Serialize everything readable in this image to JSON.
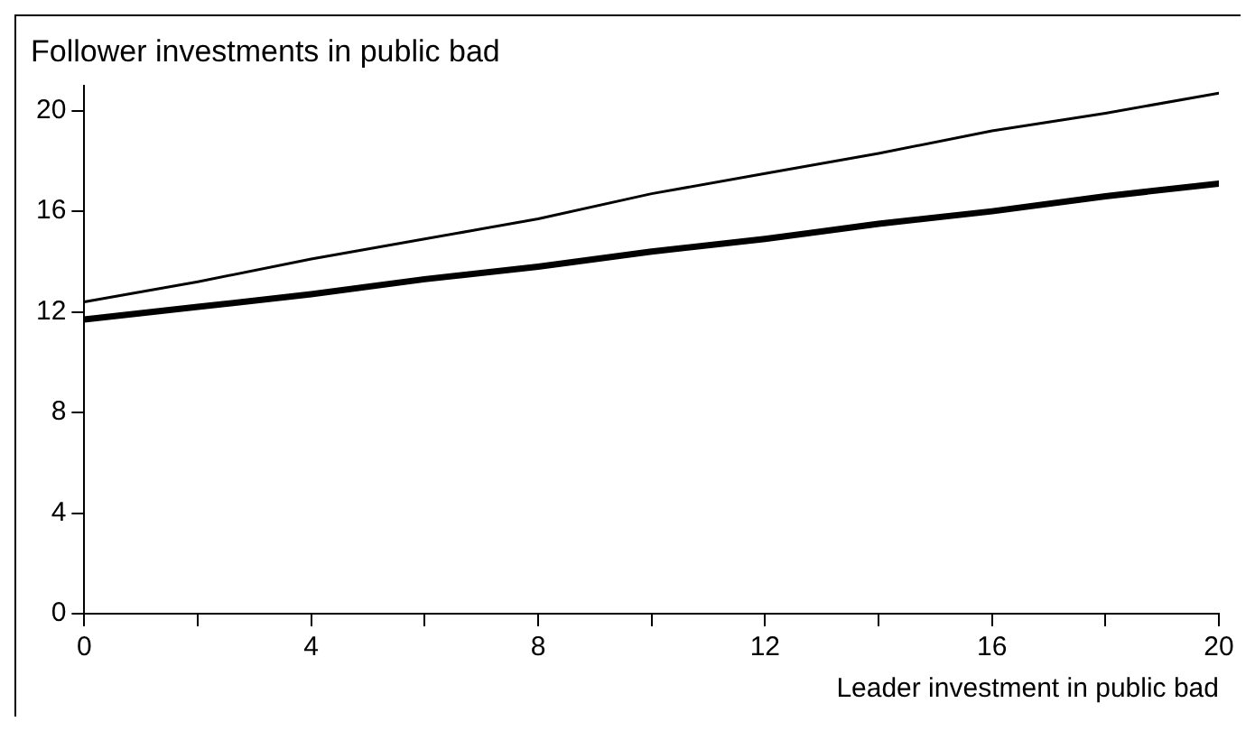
{
  "chart_data": {
    "type": "line",
    "title": "Follower investments in public bad",
    "xlabel": "Leader investment in public bad",
    "x": [
      0,
      2,
      4,
      6,
      8,
      10,
      12,
      14,
      16,
      18,
      20
    ],
    "series": [
      {
        "color": "#000000",
        "values": [
          12.4,
          13.2,
          14.1,
          14.9,
          15.7,
          16.7,
          17.5,
          18.3,
          19.2,
          19.9,
          20.7
        ]
      },
      {
        "color": "#000000",
        "values": [
          11.7,
          12.2,
          12.7,
          13.3,
          13.8,
          14.4,
          14.9,
          15.5,
          16.0,
          16.6,
          17.1
        ]
      }
    ],
    "xlim": [
      0,
      20
    ],
    "xticks": [
      0,
      {
        "value": 2,
        "label": null
      },
      4,
      {
        "value": 6,
        "label": null
      },
      8,
      {
        "value": 10,
        "label": null
      },
      12,
      {
        "value": 14,
        "label": null
      },
      16,
      {
        "value": 18,
        "label": null
      },
      20
    ],
    "ylim": [
      0,
      21
    ],
    "yticks": [
      0,
      4,
      8,
      12,
      16,
      20
    ],
    "grid": false,
    "legend": false,
    "marker": "none",
    "line_style": "solid"
  }
}
